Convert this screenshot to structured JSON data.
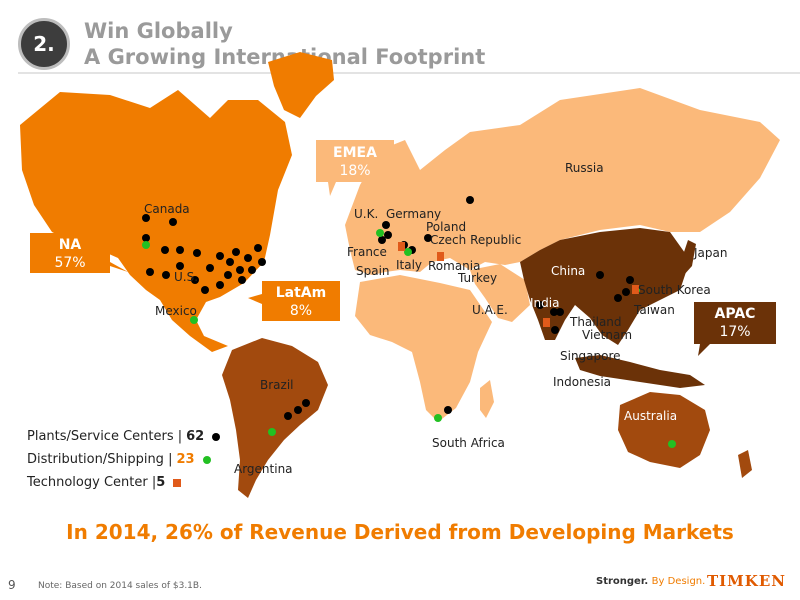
{
  "header": {
    "number": "2.",
    "title_line1": "Win Globally",
    "title_line2": "A Growing International Footprint"
  },
  "regions": [
    {
      "key": "na",
      "name": "NA",
      "pct": "57%"
    },
    {
      "key": "emea",
      "name": "EMEA",
      "pct": "18%"
    },
    {
      "key": "latam",
      "name": "LatAm",
      "pct": "8%"
    },
    {
      "key": "apac",
      "name": "APAC",
      "pct": "17%"
    }
  ],
  "locations": [
    "Canada",
    "U.S.",
    "Mexico",
    "Brazil",
    "Argentina",
    "U.K.",
    "Germany",
    "Poland",
    "France",
    "Czech Republic",
    "Spain",
    "Italy",
    "Romania",
    "Turkey",
    "Russia",
    "U.A.E.",
    "South Africa",
    "China",
    "India",
    "Japan",
    "South Korea",
    "Taiwan",
    "Thailand",
    "Vietnam",
    "Singapore",
    "Indonesia",
    "Australia"
  ],
  "legend": {
    "plants_label": "Plants/Service Centers |",
    "plants_count": "62",
    "distribution_label": "Distribution/Shipping |",
    "distribution_count": "23",
    "tech_label": "Technology Center |",
    "tech_count": "5"
  },
  "colors": {
    "na": "#f07c00",
    "emea": "#fbb97a",
    "latam": "#a24a0e",
    "apac": "#6b3208",
    "plant": "#000000",
    "distribution": "#22c022",
    "tech": "#e05a1a",
    "accent": "#f07c00"
  },
  "headline": "In 2014, 26% of Revenue Derived from Developing Markets",
  "footer": {
    "page": "9",
    "note_prefix": "Note:",
    "note_text": "Based on 2014 sales of $3.1B.",
    "tagline_a": "Stronger.",
    "tagline_b": "By Design.",
    "logo": "TIMKEN"
  }
}
